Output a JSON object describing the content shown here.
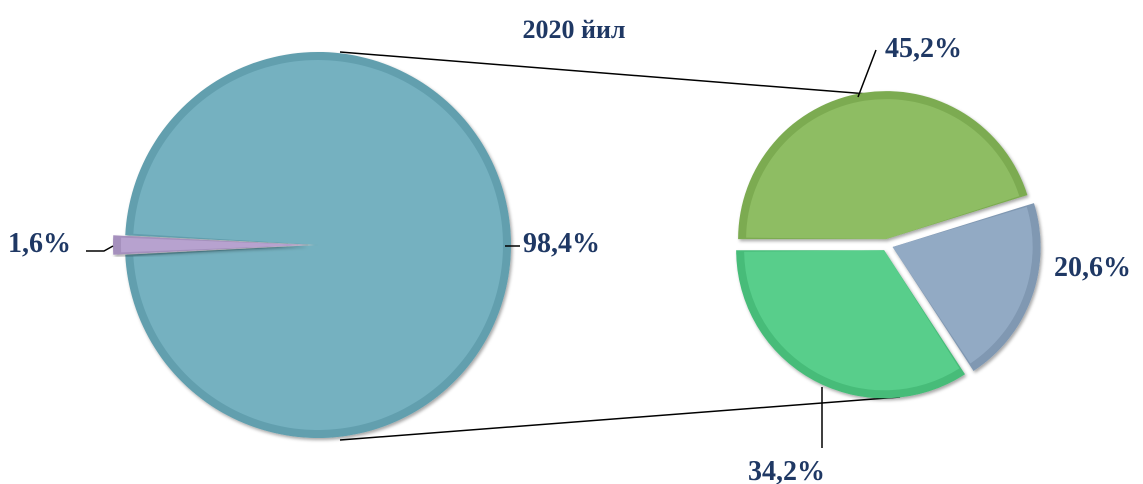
{
  "chart_data": [
    {
      "type": "pie",
      "title": "2020 йил",
      "slices": [
        {
          "value": 98.4,
          "label": "98,4%",
          "color": "#74b1c0"
        },
        {
          "value": 1.6,
          "label": "1,6%",
          "color": "#b7a2cf"
        }
      ]
    },
    {
      "type": "pie",
      "title": "",
      "note": "breakdown of the 98,4% segment",
      "slices": [
        {
          "value": 45.2,
          "label": "45,2%",
          "color": "#8ebd63"
        },
        {
          "value": 20.6,
          "label": "20,6%",
          "color": "#92aac4"
        },
        {
          "value": 34.2,
          "label": "34,2%",
          "color": "#58ce8b"
        }
      ]
    }
  ]
}
